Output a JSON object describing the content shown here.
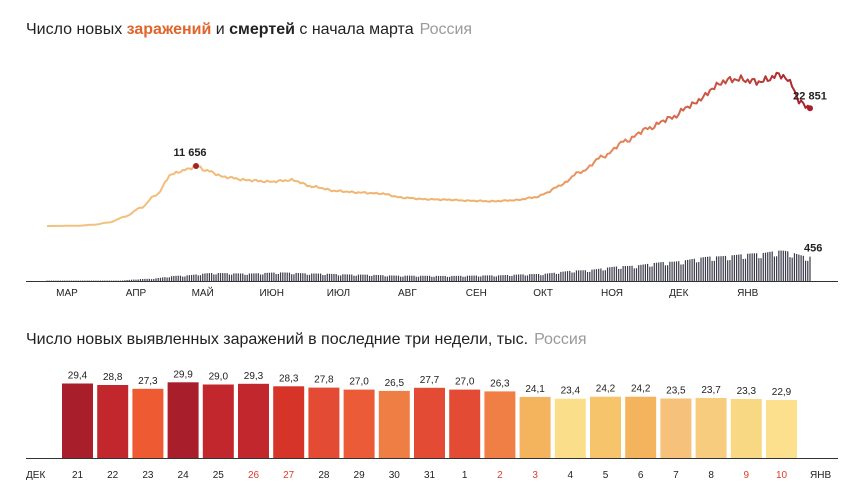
{
  "chart_data": [
    {
      "type": "line",
      "title_parts": {
        "prefix": "Число новых ",
        "infections": "заражений",
        "middle": " и ",
        "deaths": "смертей",
        "suffix": " с начала марта",
        "region": "Россия"
      },
      "x_tick_labels": [
        "МАР",
        "АПР",
        "МАЙ",
        "ИЮН",
        "ИЮЛ",
        "АВГ",
        "СЕН",
        "ОКТ",
        "НОЯ",
        "ДЕК",
        "ЯНВ"
      ],
      "series": [
        {
          "name": "заражения",
          "keypoints": [
            [
              0,
              0
            ],
            [
              14,
              50
            ],
            [
              21,
              250
            ],
            [
              28,
              700
            ],
            [
              35,
              1800
            ],
            [
              42,
              3500
            ],
            [
              49,
              6000
            ],
            [
              56,
              10000
            ],
            [
              60,
              10600
            ],
            [
              63,
              11000
            ],
            [
              67,
              11656
            ],
            [
              72,
              10700
            ],
            [
              80,
              9500
            ],
            [
              90,
              8900
            ],
            [
              100,
              8600
            ],
            [
              110,
              8900
            ],
            [
              120,
              7600
            ],
            [
              130,
              6800
            ],
            [
              140,
              6500
            ],
            [
              150,
              6300
            ],
            [
              160,
              5500
            ],
            [
              170,
              5200
            ],
            [
              180,
              5100
            ],
            [
              190,
              4900
            ],
            [
              200,
              4800
            ],
            [
              210,
              5000
            ],
            [
              220,
              5600
            ],
            [
              225,
              6500
            ],
            [
              230,
              7800
            ],
            [
              240,
              10500
            ],
            [
              250,
              13500
            ],
            [
              260,
              16500
            ],
            [
              270,
              18900
            ],
            [
              280,
              20900
            ],
            [
              290,
              23500
            ],
            [
              295,
              25000
            ],
            [
              300,
              27000
            ],
            [
              305,
              28200
            ],
            [
              310,
              28500
            ],
            [
              320,
              28000
            ],
            [
              330,
              29350
            ],
            [
              335,
              27500
            ],
            [
              338,
              24000
            ],
            [
              340,
              23800
            ],
            [
              343,
              22851
            ]
          ],
          "peak_label": "11 656",
          "last_label": "22 851",
          "color_start": "#f2c27f",
          "color_end": "#a81e2b"
        },
        {
          "name": "смерти",
          "keypoints": [
            [
              0,
              0
            ],
            [
              15,
              1
            ],
            [
              30,
              5
            ],
            [
              45,
              40
            ],
            [
              60,
              100
            ],
            [
              75,
              150
            ],
            [
              90,
              140
            ],
            [
              105,
              160
            ],
            [
              120,
              140
            ],
            [
              140,
              120
            ],
            [
              160,
              100
            ],
            [
              180,
              95
            ],
            [
              200,
              105
            ],
            [
              220,
              130
            ],
            [
              240,
              200
            ],
            [
              260,
              280
            ],
            [
              280,
              360
            ],
            [
              300,
              460
            ],
            [
              320,
              520
            ],
            [
              330,
              570
            ],
            [
              343,
              456
            ]
          ],
          "last_label": "456",
          "color": "#3b3b4b"
        }
      ],
      "day_count": 344
    },
    {
      "type": "bar",
      "title": "Число новых выявленных заражений в последние три недели, тыс.",
      "region": "Россия",
      "categories": [
        "21",
        "22",
        "23",
        "24",
        "25",
        "26",
        "27",
        "28",
        "29",
        "30",
        "31",
        "1",
        "2",
        "3",
        "4",
        "5",
        "6",
        "7",
        "8",
        "9",
        "10"
      ],
      "values": [
        29.4,
        28.8,
        27.3,
        29.9,
        29.0,
        29.3,
        28.3,
        27.8,
        27.0,
        26.5,
        27.7,
        27.0,
        26.3,
        24.1,
        23.4,
        24.2,
        24.2,
        23.5,
        23.7,
        23.3,
        22.9
      ],
      "value_labels": [
        "29,4",
        "28,8",
        "27,3",
        "29,9",
        "29,0",
        "29,3",
        "28,3",
        "27,8",
        "27,0",
        "26,5",
        "27,7",
        "27,0",
        "26,3",
        "24,1",
        "23,4",
        "24,2",
        "24,2",
        "23,5",
        "23,7",
        "23,3",
        "22,9"
      ],
      "bar_colors": [
        "#a81e2b",
        "#c1272d",
        "#ee5a32",
        "#a81e2b",
        "#c1272d",
        "#c1272d",
        "#d63429",
        "#e44b35",
        "#eb5b37",
        "#ef7e44",
        "#e44b35",
        "#e44b35",
        "#f07f45",
        "#f4b45e",
        "#fbde8a",
        "#f6c46b",
        "#f4b45e",
        "#f6c27b",
        "#f8cc7f",
        "#f9d883",
        "#fce08d"
      ],
      "weekend_days": [
        "26",
        "27",
        "2",
        "3",
        "9",
        "10"
      ],
      "weekend_color": "#e03a2c",
      "month_left": "ДЕК",
      "month_right": "ЯНВ",
      "ylim": [
        0,
        30
      ]
    }
  ]
}
